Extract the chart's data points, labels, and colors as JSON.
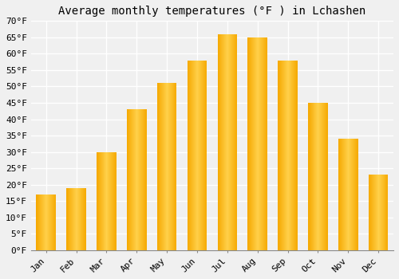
{
  "title": "Average monthly temperatures (°F ) in Lchashen",
  "months": [
    "Jan",
    "Feb",
    "Mar",
    "Apr",
    "May",
    "Jun",
    "Jul",
    "Aug",
    "Sep",
    "Oct",
    "Nov",
    "Dec"
  ],
  "values": [
    17,
    19,
    30,
    43,
    51,
    58,
    66,
    65,
    58,
    45,
    34,
    23
  ],
  "bar_color_center": "#FFD04A",
  "bar_color_edge": "#F5A800",
  "background_color": "#F0F0F0",
  "grid_color": "#FFFFFF",
  "ylim": [
    0,
    70
  ],
  "yticks": [
    0,
    5,
    10,
    15,
    20,
    25,
    30,
    35,
    40,
    45,
    50,
    55,
    60,
    65,
    70
  ],
  "title_fontsize": 10,
  "tick_fontsize": 8,
  "bar_width": 0.65
}
